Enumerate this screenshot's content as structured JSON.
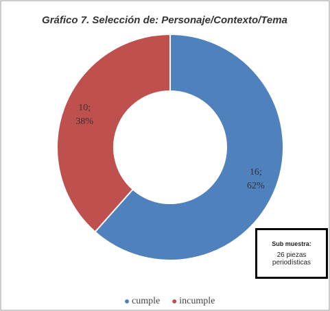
{
  "chart_data": {
    "type": "donut",
    "title": "Gráfico 7. Selección de: Personaje/Contexto/Tema",
    "categories": [
      "cumple",
      "incumple"
    ],
    "values": [
      16,
      10
    ],
    "value_labels": [
      "16;\n62%",
      "10;\n38%"
    ],
    "colors": [
      "#4f81bd",
      "#c0504d"
    ],
    "legend": "bottom",
    "annotation": [
      "Sub muestra:",
      "26 piezas periodísticas"
    ]
  }
}
